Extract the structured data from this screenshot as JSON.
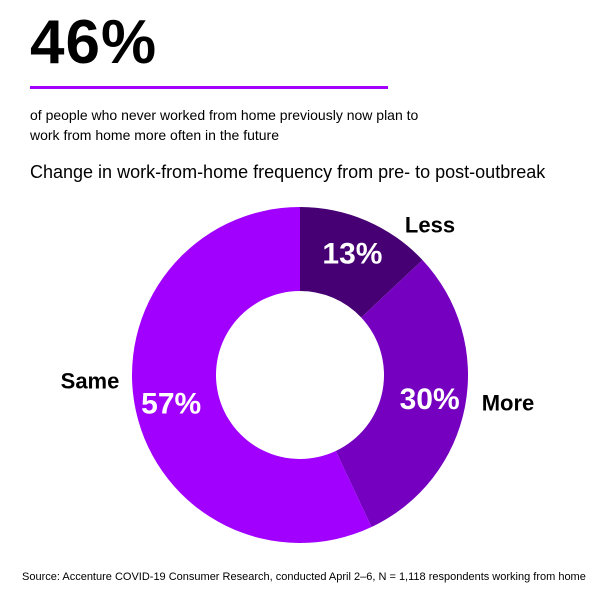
{
  "header": {
    "headline": "46%",
    "subhead": "of people who never worked from home previously now plan to work from home more often in the future",
    "accent_color": "#a100ff"
  },
  "chart_data": {
    "type": "pie",
    "title": "Change in work-from-home frequency from pre- to post-outbreak",
    "donut": true,
    "slices": [
      {
        "label": "Less",
        "value": 13,
        "value_label": "13%",
        "color": "#460073"
      },
      {
        "label": "More",
        "value": 30,
        "value_label": "30%",
        "color": "#7500c0"
      },
      {
        "label": "Same",
        "value": 57,
        "value_label": "57%",
        "color": "#a100ff"
      }
    ]
  },
  "footer": {
    "source": "Source: Accenture COVID-19 Consumer Research, conducted April 2–6, N = 1,118 respondents working from home"
  }
}
